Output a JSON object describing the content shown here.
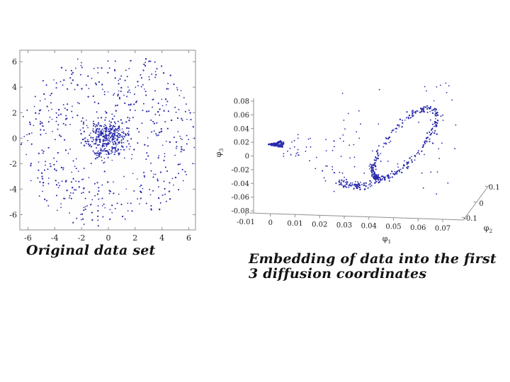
{
  "slide": {
    "background": "#ffffff",
    "point_color": "#2a2aad",
    "axis_color": "#8f8f8f",
    "tick_text_color": "#222222"
  },
  "captions": {
    "left": "Original data set",
    "right_line1": "Embedding of data into the first",
    "right_line2": "3 diffusion coordinates"
  },
  "chart_data": [
    {
      "type": "scatter",
      "title": "Original data set",
      "xlabel": "",
      "ylabel": "",
      "xlim": [
        -6.6,
        6.5
      ],
      "ylim": [
        -7.2,
        6.9
      ],
      "x_ticks": [
        -6,
        -4,
        -2,
        0,
        2,
        4,
        6
      ],
      "x_tick_labels": [
        "-6",
        "-4",
        "-2",
        "0",
        "2",
        "4",
        "6"
      ],
      "y_ticks": [
        6,
        4,
        2,
        0,
        -2,
        -4,
        -6
      ],
      "y_tick_labels": [
        "6",
        "4",
        "2",
        "0",
        "-2",
        "-4",
        "-6"
      ],
      "grid": false,
      "legend": null,
      "point_color": "#2a2aad",
      "n_points_approx": 880,
      "distribution": "dense isotropic Gaussian cluster at the origin (sigma ~0.85) surrounded by a sparse annulus of points with radius ~3.3 to 6.8",
      "generator": {
        "seed": 1337,
        "cluster": {
          "n": 380,
          "cx": 0,
          "cy": 0,
          "sigma": 0.85
        },
        "ring": {
          "n": 470,
          "r_min": 3.3,
          "r_max": 6.8
        },
        "bridge": {
          "n": 26,
          "r_min": 2.0,
          "r_max": 3.3
        }
      }
    },
    {
      "type": "scatter3d",
      "title": "Embedding of data into the first 3 diffusion coordinates",
      "xlabel": "φ_1",
      "ylabel": "φ_2",
      "zlabel": "φ_3",
      "x_ticks": [
        -0.01,
        0,
        0.01,
        0.02,
        0.03,
        0.04,
        0.05,
        0.06,
        0.07
      ],
      "x_tick_labels": [
        "-0.01",
        "0",
        "0.01",
        "0.02",
        "0.03",
        "0.04",
        "0.05",
        "0.06",
        "0.07"
      ],
      "y_ticks": [
        -0.1,
        0,
        0.1
      ],
      "y_tick_labels": [
        "-0.1",
        "0",
        "0.1"
      ],
      "z_ticks": [
        0.08,
        0.06,
        0.04,
        0.02,
        0,
        -0.02,
        -0.04,
        -0.06,
        -0.08
      ],
      "z_tick_labels": [
        "0.08",
        "0.06",
        "0.04",
        "0.02",
        "0",
        "-0.02",
        "-0.04",
        "-0.06",
        "-0.08"
      ],
      "grid": false,
      "point_color": "#2a2aad",
      "features": [
        "dense left-pointing arrowhead cluster near phi1~0, phi3~0.02",
        "noisy tilted elongated loop spanning phi1~0.03-0.068, phi3~-0.02 to 0.08",
        "dense curved tail along phi3~-0.045 from phi1~0.027 to 0.042",
        "sparse trail of points linking the cluster to the loop",
        "scattered outlier points around the loop"
      ],
      "generator": {
        "seed": 777
      }
    }
  ]
}
